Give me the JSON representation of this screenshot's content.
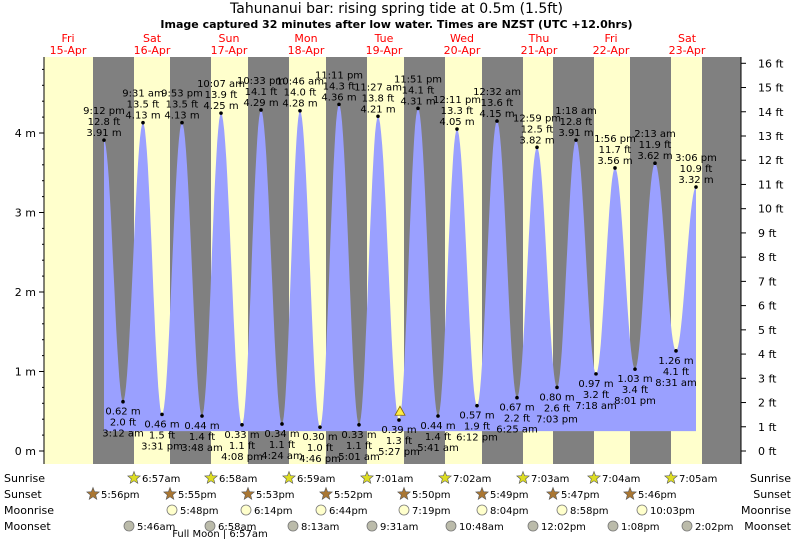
{
  "chart_data": {
    "type": "area",
    "title": "Tahunanui bar: rising  spring tide at 0.5m (1.5ft)",
    "subtitle": "Image captured 32 minutes after low water. Times are NZST (UTC +12.0hrs)",
    "ylim_m": [
      0,
      4.9
    ],
    "left_ticks": [
      "0 m",
      "1 m",
      "2 m",
      "3 m",
      "4 m"
    ],
    "right_ticks": [
      "0 ft",
      "1 ft",
      "2 ft",
      "3 ft",
      "4 ft",
      "5 ft",
      "6 ft",
      "7 ft",
      "8 ft",
      "9 ft",
      "10 ft",
      "11 ft",
      "12 ft",
      "13 ft",
      "14 ft",
      "15 ft",
      "16 ft"
    ],
    "day_labels": [
      {
        "day": "Fri",
        "date": "15-Apr"
      },
      {
        "day": "Sat",
        "date": "16-Apr"
      },
      {
        "day": "Sun",
        "date": "17-Apr"
      },
      {
        "day": "Mon",
        "date": "18-Apr"
      },
      {
        "day": "Tue",
        "date": "19-Apr"
      },
      {
        "day": "Wed",
        "date": "20-Apr"
      },
      {
        "day": "Thu",
        "date": "21-Apr"
      },
      {
        "day": "Fri",
        "date": "22-Apr"
      },
      {
        "day": "Sat",
        "date": "23-Apr"
      }
    ],
    "tides": [
      {
        "type": "high",
        "time": "9:12 pm",
        "m": 3.91,
        "ft": "12.8 ft",
        "m_label": "3.91 m"
      },
      {
        "type": "low",
        "time": "3:12 am",
        "m": 0.62,
        "ft": "2.0 ft",
        "m_label": "0.62 m"
      },
      {
        "type": "high",
        "time": "9:31 am",
        "m": 4.13,
        "ft": "13.5 ft",
        "m_label": "4.13 m"
      },
      {
        "type": "low",
        "time": "3:31 pm",
        "m": 0.46,
        "ft": "1.5 ft",
        "m_label": "0.46 m"
      },
      {
        "type": "high",
        "time": "9:53 pm",
        "m": 4.13,
        "ft": "13.5 ft",
        "m_label": "4.13 m"
      },
      {
        "type": "low",
        "time": "3:48 am",
        "m": 0.44,
        "ft": "1.4 ft",
        "m_label": "0.44 m"
      },
      {
        "type": "high",
        "time": "10:07 am",
        "m": 4.25,
        "ft": "13.9 ft",
        "m_label": "4.25 m"
      },
      {
        "type": "low",
        "time": "4:08 pm",
        "m": 0.33,
        "ft": "1.1 ft",
        "m_label": "0.33 m"
      },
      {
        "type": "high",
        "time": "10:33 pm",
        "m": 4.29,
        "ft": "14.1 ft",
        "m_label": "4.29 m"
      },
      {
        "type": "low",
        "time": "4:24 am",
        "m": 0.34,
        "ft": "1.1 ft",
        "m_label": "0.34 m"
      },
      {
        "type": "high",
        "time": "10:46 am",
        "m": 4.28,
        "ft": "14.0 ft",
        "m_label": "4.28 m"
      },
      {
        "type": "low",
        "time": "4:46 pm",
        "m": 0.3,
        "ft": "1.0 ft",
        "m_label": "0.30 m"
      },
      {
        "type": "high",
        "time": "11:11 pm",
        "m": 4.36,
        "ft": "14.3 ft",
        "m_label": "4.36 m"
      },
      {
        "type": "low",
        "time": "5:01 am",
        "m": 0.33,
        "ft": "1.1 ft",
        "m_label": "0.33 m"
      },
      {
        "type": "high",
        "time": "11:27 am",
        "m": 4.21,
        "ft": "13.8 ft",
        "m_label": "4.21 m"
      },
      {
        "type": "low",
        "time": "5:27 pm",
        "m": 0.39,
        "ft": "1.3 ft",
        "m_label": "0.39 m"
      },
      {
        "type": "high",
        "time": "11:51 pm",
        "m": 4.31,
        "ft": "14.1 ft",
        "m_label": "4.31 m"
      },
      {
        "type": "low",
        "time": "5:41 am",
        "m": 0.44,
        "ft": "1.4 ft",
        "m_label": "0.44 m"
      },
      {
        "type": "high",
        "time": "12:11 pm",
        "m": 4.05,
        "ft": "13.3 ft",
        "m_label": "4.05 m"
      },
      {
        "type": "low",
        "time": "6:12 pm",
        "m": 0.57,
        "ft": "1.9 ft",
        "m_label": "0.57 m"
      },
      {
        "type": "high",
        "time": "12:32 am",
        "m": 4.15,
        "ft": "13.6 ft",
        "m_label": "4.15 m"
      },
      {
        "type": "low",
        "time": "6:25 am",
        "m": 0.67,
        "ft": "2.2 ft",
        "m_label": "0.67 m"
      },
      {
        "type": "high",
        "time": "12:59 pm",
        "m": 3.82,
        "ft": "12.5 ft",
        "m_label": "3.82 m"
      },
      {
        "type": "low",
        "time": "7:03 pm",
        "m": 0.8,
        "ft": "2.6 ft",
        "m_label": "0.80 m"
      },
      {
        "type": "high",
        "time": "1:18 am",
        "m": 3.91,
        "ft": "12.8 ft",
        "m_label": "3.91 m"
      },
      {
        "type": "low",
        "time": "7:18 am",
        "m": 0.97,
        "ft": "3.2 ft",
        "m_label": "0.97 m"
      },
      {
        "type": "high",
        "time": "1:56 pm",
        "m": 3.56,
        "ft": "11.7 ft",
        "m_label": "3.56 m"
      },
      {
        "type": "low",
        "time": "8:01 pm",
        "m": 1.03,
        "ft": "3.4 ft",
        "m_label": "1.03 m"
      },
      {
        "type": "high",
        "time": "2:13 am",
        "m": 3.62,
        "ft": "11.9 ft",
        "m_label": "3.62 m"
      },
      {
        "type": "low",
        "time": "8:31 am",
        "m": 1.26,
        "ft": "4.1 ft",
        "m_label": "1.26 m"
      },
      {
        "type": "high",
        "time": "3:06 pm",
        "m": 3.32,
        "ft": "10.9 ft",
        "m_label": "3.32 m"
      }
    ],
    "current_level_m": 0.5,
    "row_labels": [
      "Sunrise",
      "Sunset",
      "Moonrise",
      "Moonset"
    ],
    "sunrise": [
      "6:57am",
      "6:58am",
      "6:59am",
      "7:01am",
      "7:02am",
      "7:03am",
      "7:04am",
      "7:05am"
    ],
    "sunset": [
      "5:56pm",
      "5:55pm",
      "5:53pm",
      "5:52pm",
      "5:50pm",
      "5:49pm",
      "5:47pm",
      "5:46pm"
    ],
    "moonrise": [
      "5:48pm",
      "6:14pm",
      "6:44pm",
      "7:19pm",
      "8:04pm",
      "8:58pm",
      "10:03pm"
    ],
    "moonset": [
      "5:46am",
      "6:58am",
      "8:13am",
      "9:31am",
      "10:48am",
      "12:02pm",
      "1:08pm",
      "2:02pm"
    ],
    "moon_phase_note": "Full Moon | 6:57am",
    "colors": {
      "day": "#ffffcc",
      "night": "#808080",
      "water": "#9aa0ff",
      "day_label": "#ff0000",
      "now_marker": "#ffee44",
      "sun_star": "#dddd22",
      "sunset_star": "#aa7733",
      "moon": "#ffffcc"
    }
  }
}
